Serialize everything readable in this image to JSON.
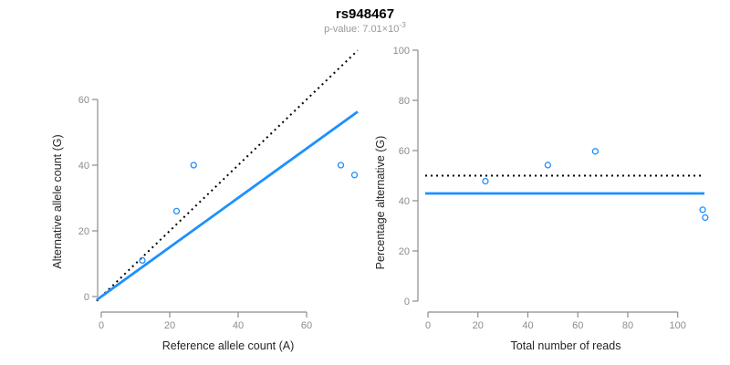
{
  "header": {
    "title": "rs948467",
    "subtitle_base": "p-value: 7.01×10",
    "subtitle_exponent": "-3"
  },
  "colors": {
    "accent_blue": "#1E90FF",
    "line_black": "#000000",
    "axis_gray": "#8C8C8C",
    "tick_label_gray": "#8C8C8C",
    "axis_title": "#262626",
    "title_color": "#000000",
    "subtitle_gray": "#999999"
  },
  "chart_data": [
    {
      "type": "scatter",
      "panel": "left",
      "xlabel": "Reference allele count (A)",
      "ylabel": "Alternative allele count (G)",
      "xlim": [
        0,
        75
      ],
      "ylim": [
        0,
        75
      ],
      "xticks": [
        0,
        20,
        40,
        60
      ],
      "yticks": [
        0,
        20,
        40,
        60
      ],
      "grid": false,
      "points": [
        [
          12,
          11
        ],
        [
          22,
          26
        ],
        [
          27,
          40
        ],
        [
          70,
          40
        ],
        [
          74,
          37
        ]
      ],
      "abline": [
        {
          "name": "identity-line",
          "slope": 1,
          "intercept": 0,
          "style": "dotted",
          "color": "#000000"
        },
        {
          "name": "fit-line",
          "slope": 0.751,
          "intercept": 0,
          "style": "solid",
          "color": "#1E90FF"
        }
      ]
    },
    {
      "type": "scatter",
      "panel": "right",
      "xlabel": "Total number of reads",
      "ylabel": "Percentage alternative (G)",
      "xlim": [
        0,
        111
      ],
      "ylim": [
        0,
        100
      ],
      "xticks": [
        0,
        20,
        40,
        60,
        80,
        100
      ],
      "yticks": [
        0,
        20,
        40,
        60,
        80,
        100
      ],
      "grid": false,
      "points": [
        [
          23,
          47.8
        ],
        [
          48,
          54.2
        ],
        [
          67,
          59.7
        ],
        [
          110,
          36.4
        ],
        [
          111,
          33.3
        ]
      ],
      "hlines": [
        {
          "name": "expected-50pct-line",
          "y": 50,
          "style": "dotted",
          "color": "#000000"
        },
        {
          "name": "observed-mean-line",
          "y": 42.9,
          "style": "solid",
          "color": "#1E90FF"
        }
      ]
    }
  ]
}
